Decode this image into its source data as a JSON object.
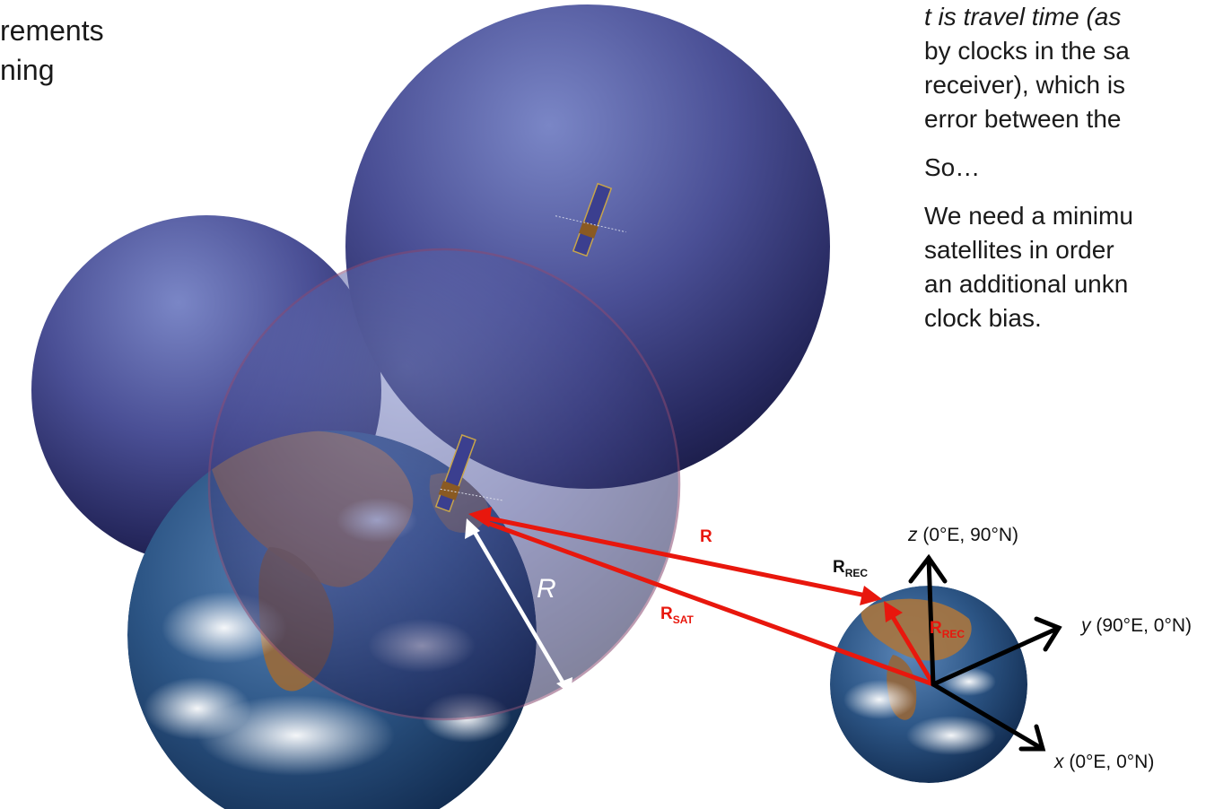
{
  "left_text": {
    "line1": "rements",
    "line2": "ning"
  },
  "right_text": {
    "p1_line1": "t is travel time (as",
    "p1_line2": "by clocks in the sa",
    "p1_line3": "receiver), which is",
    "p1_line4": "error between the",
    "p2": "So…",
    "p3_line1": "We need a minimu",
    "p3_line2": "satellites in order",
    "p3_line3": "an additional unkn",
    "p3_line4": "clock bias."
  },
  "labels": {
    "R_main": "R",
    "R_radius": "R",
    "R_sat_base": "R",
    "R_sat_sub": "SAT",
    "R_rec_base": "R",
    "R_rec_sub": "REC",
    "R_rec_red_base": "R",
    "R_rec_red_sub": "REC"
  },
  "axes": {
    "z_var": "z",
    "z_coords": " (0°E, 90°N)",
    "y_var": "y",
    "y_coords": " (90°E, 0°N)",
    "x_var": "x",
    "x_coords": " (0°E, 0°N)"
  },
  "colors": {
    "vector_red": "#e8170d",
    "sphere_blue": "#3a3f82",
    "axis_black": "#000000",
    "circle_outline": "#8a4a72"
  }
}
